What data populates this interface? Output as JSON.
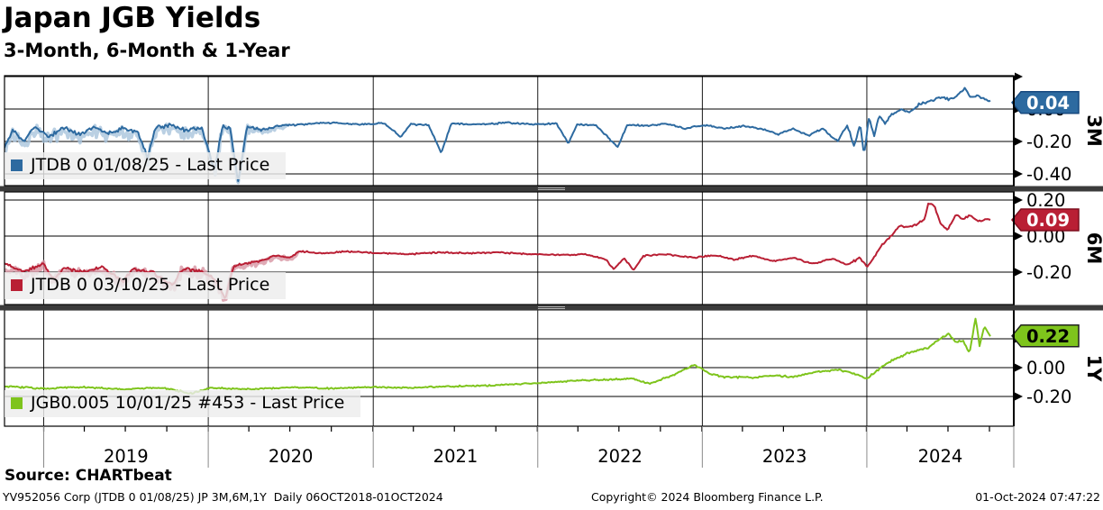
{
  "header": {
    "title": "Japan JGB Yields",
    "subtitle": "3-Month, 6-Month & 1-Year"
  },
  "footer": {
    "source": "Source: CHARTbeat",
    "meta": "YV952056 Corp (JTDB 0 01/08/25) JP 3M,6M,1Y  Daily 06OCT2018-01OCT2024",
    "copyright": "Copyright© 2024 Bloomberg Finance L.P.",
    "timestamp": "01-Oct-2024 07:47:22"
  },
  "chart_data": {
    "type": "line",
    "title": "Japan JGB Yields",
    "subtitle": "3-Month, 6-Month & 1-Year",
    "x_axis": {
      "years": [
        "2019",
        "2020",
        "2021",
        "2022",
        "2023",
        "2024"
      ],
      "range_label": "06OCT2018-01OCT2024"
    },
    "grid": true,
    "panels": [
      {
        "id": "3m",
        "axis_label": "3M",
        "legend": "JTDB 0 01/08/25 - Last Price",
        "last_price": "0.04",
        "last_value": 0.04,
        "color": "#2d6aa0",
        "fuzz_color": "#a9c4dc",
        "tag_fill": "#2d6aa0",
        "tag_border": "#16487e",
        "tag_text_color": "#ffffff",
        "ylim": [
          -0.47,
          0.21
        ],
        "ticks": [
          {
            "value": 0.2,
            "label": ""
          },
          {
            "value": 0.0,
            "label": "0.00"
          },
          {
            "value": -0.2,
            "label": "-0.20"
          },
          {
            "value": -0.4,
            "label": "-0.40"
          }
        ],
        "fuzz_until": 0.29,
        "noise": [
          [
            0,
            0.022
          ],
          [
            0.21,
            0.022
          ],
          [
            0.26,
            0.012
          ],
          [
            0.3,
            0.006
          ],
          [
            0.83,
            0.006
          ],
          [
            0.858,
            0.012
          ],
          [
            0.89,
            0.009
          ],
          [
            1,
            0.008
          ]
        ],
        "points": [
          [
            0,
            -0.26
          ],
          [
            0.008,
            -0.15
          ],
          [
            0.02,
            -0.22
          ],
          [
            0.03,
            -0.13
          ],
          [
            0.045,
            -0.19
          ],
          [
            0.06,
            -0.13
          ],
          [
            0.075,
            -0.18
          ],
          [
            0.09,
            -0.13
          ],
          [
            0.105,
            -0.17
          ],
          [
            0.12,
            -0.135
          ],
          [
            0.135,
            -0.16
          ],
          [
            0.145,
            -0.32
          ],
          [
            0.153,
            -0.13
          ],
          [
            0.17,
            -0.12
          ],
          [
            0.185,
            -0.15
          ],
          [
            0.2,
            -0.13
          ],
          [
            0.213,
            -0.4
          ],
          [
            0.221,
            -0.12
          ],
          [
            0.229,
            -0.14
          ],
          [
            0.237,
            -0.47
          ],
          [
            0.246,
            -0.12
          ],
          [
            0.26,
            -0.14
          ],
          [
            0.28,
            -0.11
          ],
          [
            0.3,
            -0.095
          ],
          [
            0.33,
            -0.085
          ],
          [
            0.36,
            -0.095
          ],
          [
            0.385,
            -0.088
          ],
          [
            0.402,
            -0.17
          ],
          [
            0.412,
            -0.093
          ],
          [
            0.43,
            -0.1
          ],
          [
            0.443,
            -0.27
          ],
          [
            0.453,
            -0.09
          ],
          [
            0.48,
            -0.095
          ],
          [
            0.51,
            -0.085
          ],
          [
            0.54,
            -0.095
          ],
          [
            0.56,
            -0.09
          ],
          [
            0.572,
            -0.21
          ],
          [
            0.581,
            -0.095
          ],
          [
            0.6,
            -0.1
          ],
          [
            0.622,
            -0.235
          ],
          [
            0.632,
            -0.095
          ],
          [
            0.65,
            -0.105
          ],
          [
            0.67,
            -0.09
          ],
          [
            0.69,
            -0.12
          ],
          [
            0.71,
            -0.1
          ],
          [
            0.73,
            -0.12
          ],
          [
            0.75,
            -0.105
          ],
          [
            0.77,
            -0.125
          ],
          [
            0.785,
            -0.155
          ],
          [
            0.8,
            -0.12
          ],
          [
            0.815,
            -0.165
          ],
          [
            0.83,
            -0.12
          ],
          [
            0.845,
            -0.2
          ],
          [
            0.855,
            -0.1
          ],
          [
            0.862,
            -0.235
          ],
          [
            0.868,
            -0.09
          ],
          [
            0.872,
            -0.28
          ],
          [
            0.877,
            -0.05
          ],
          [
            0.882,
            -0.17
          ],
          [
            0.887,
            -0.04
          ],
          [
            0.893,
            -0.09
          ],
          [
            0.9,
            -0.035
          ],
          [
            0.91,
            0.0
          ],
          [
            0.918,
            -0.02
          ],
          [
            0.928,
            0.03
          ],
          [
            0.94,
            0.05
          ],
          [
            0.95,
            0.075
          ],
          [
            0.958,
            0.06
          ],
          [
            0.966,
            0.08
          ],
          [
            0.974,
            0.125
          ],
          [
            0.98,
            0.075
          ],
          [
            0.987,
            0.08
          ],
          [
            0.995,
            0.06
          ],
          [
            1,
            0.045
          ]
        ]
      },
      {
        "id": "6m",
        "axis_label": "6M",
        "legend": "JTDB 0 03/10/25 - Last Price",
        "last_price": "0.09",
        "last_value": 0.09,
        "color": "#b91f34",
        "fuzz_color": "#d795a2",
        "tag_fill": "#b91f34",
        "tag_border": "#7d0f1f",
        "tag_text_color": "#ffffff",
        "ylim": [
          -0.38,
          0.24
        ],
        "ticks": [
          {
            "value": 0.2,
            "label": "0.20"
          },
          {
            "value": 0.0,
            "label": "0.00"
          },
          {
            "value": -0.2,
            "label": "-0.20"
          }
        ],
        "fuzz_until": 0.3,
        "noise": [
          [
            0,
            0.016
          ],
          [
            0.2,
            0.018
          ],
          [
            0.26,
            0.009
          ],
          [
            0.31,
            0.005
          ],
          [
            0.84,
            0.005
          ],
          [
            0.875,
            0.008
          ],
          [
            1,
            0.007
          ]
        ],
        "points": [
          [
            0,
            -0.17
          ],
          [
            0.02,
            -0.21
          ],
          [
            0.04,
            -0.17
          ],
          [
            0.05,
            -0.26
          ],
          [
            0.06,
            -0.19
          ],
          [
            0.08,
            -0.215
          ],
          [
            0.1,
            -0.185
          ],
          [
            0.12,
            -0.27
          ],
          [
            0.13,
            -0.2
          ],
          [
            0.15,
            -0.215
          ],
          [
            0.17,
            -0.29
          ],
          [
            0.18,
            -0.2
          ],
          [
            0.2,
            -0.21
          ],
          [
            0.213,
            -0.25
          ],
          [
            0.224,
            -0.365
          ],
          [
            0.232,
            -0.18
          ],
          [
            0.245,
            -0.16
          ],
          [
            0.26,
            -0.145
          ],
          [
            0.275,
            -0.115
          ],
          [
            0.29,
            -0.125
          ],
          [
            0.3,
            -0.085
          ],
          [
            0.32,
            -0.095
          ],
          [
            0.35,
            -0.085
          ],
          [
            0.38,
            -0.095
          ],
          [
            0.41,
            -0.1
          ],
          [
            0.44,
            -0.09
          ],
          [
            0.47,
            -0.095
          ],
          [
            0.5,
            -0.09
          ],
          [
            0.53,
            -0.1
          ],
          [
            0.56,
            -0.105
          ],
          [
            0.59,
            -0.1
          ],
          [
            0.61,
            -0.13
          ],
          [
            0.618,
            -0.185
          ],
          [
            0.628,
            -0.12
          ],
          [
            0.638,
            -0.19
          ],
          [
            0.648,
            -0.11
          ],
          [
            0.67,
            -0.1
          ],
          [
            0.7,
            -0.12
          ],
          [
            0.72,
            -0.105
          ],
          [
            0.74,
            -0.13
          ],
          [
            0.76,
            -0.11
          ],
          [
            0.78,
            -0.14
          ],
          [
            0.8,
            -0.12
          ],
          [
            0.82,
            -0.155
          ],
          [
            0.84,
            -0.125
          ],
          [
            0.855,
            -0.16
          ],
          [
            0.868,
            -0.12
          ],
          [
            0.875,
            -0.17
          ],
          [
            0.882,
            -0.12
          ],
          [
            0.89,
            -0.05
          ],
          [
            0.9,
            0.005
          ],
          [
            0.908,
            0.06
          ],
          [
            0.915,
            0.05
          ],
          [
            0.925,
            0.065
          ],
          [
            0.933,
            0.09
          ],
          [
            0.937,
            0.185
          ],
          [
            0.943,
            0.17
          ],
          [
            0.95,
            0.06
          ],
          [
            0.957,
            0.035
          ],
          [
            0.965,
            0.12
          ],
          [
            0.972,
            0.095
          ],
          [
            0.98,
            0.115
          ],
          [
            0.988,
            0.08
          ],
          [
            0.995,
            0.095
          ],
          [
            1,
            0.09
          ]
        ]
      },
      {
        "id": "1y",
        "axis_label": "1Y",
        "legend": "JGB0.005 10/01/25 #453 - Last Price",
        "last_price": "0.22",
        "last_value": 0.22,
        "color": "#7ec41c",
        "fuzz_color": "#c4e48f",
        "tag_fill": "#7ec41c",
        "tag_border": "#222222",
        "tag_text_color": "#000000",
        "ylim": [
          -0.4,
          0.4
        ],
        "ticks": [
          {
            "value": 0.2,
            "label": ""
          },
          {
            "value": 0.0,
            "label": "0.00"
          },
          {
            "value": -0.2,
            "label": "-0.20"
          }
        ],
        "fuzz_until": 0,
        "noise": [
          [
            0,
            0.007
          ],
          [
            0.5,
            0.006
          ],
          [
            0.86,
            0.008
          ],
          [
            1,
            0.009
          ]
        ],
        "points": [
          [
            0,
            -0.13
          ],
          [
            0.04,
            -0.145
          ],
          [
            0.08,
            -0.135
          ],
          [
            0.12,
            -0.15
          ],
          [
            0.16,
            -0.14
          ],
          [
            0.19,
            -0.18
          ],
          [
            0.21,
            -0.14
          ],
          [
            0.25,
            -0.15
          ],
          [
            0.29,
            -0.135
          ],
          [
            0.33,
            -0.145
          ],
          [
            0.37,
            -0.135
          ],
          [
            0.41,
            -0.14
          ],
          [
            0.45,
            -0.13
          ],
          [
            0.49,
            -0.125
          ],
          [
            0.52,
            -0.115
          ],
          [
            0.55,
            -0.105
          ],
          [
            0.58,
            -0.09
          ],
          [
            0.61,
            -0.085
          ],
          [
            0.635,
            -0.075
          ],
          [
            0.655,
            -0.11
          ],
          [
            0.675,
            -0.06
          ],
          [
            0.7,
            0.02
          ],
          [
            0.715,
            -0.04
          ],
          [
            0.73,
            -0.065
          ],
          [
            0.76,
            -0.07
          ],
          [
            0.78,
            -0.055
          ],
          [
            0.8,
            -0.065
          ],
          [
            0.82,
            -0.03
          ],
          [
            0.845,
            -0.015
          ],
          [
            0.86,
            -0.04
          ],
          [
            0.875,
            -0.075
          ],
          [
            0.887,
            -0.01
          ],
          [
            0.9,
            0.05
          ],
          [
            0.92,
            0.11
          ],
          [
            0.937,
            0.14
          ],
          [
            0.947,
            0.19
          ],
          [
            0.958,
            0.235
          ],
          [
            0.964,
            0.175
          ],
          [
            0.972,
            0.19
          ],
          [
            0.979,
            0.1
          ],
          [
            0.985,
            0.35
          ],
          [
            0.989,
            0.15
          ],
          [
            0.994,
            0.285
          ],
          [
            1,
            0.22
          ]
        ]
      }
    ]
  }
}
